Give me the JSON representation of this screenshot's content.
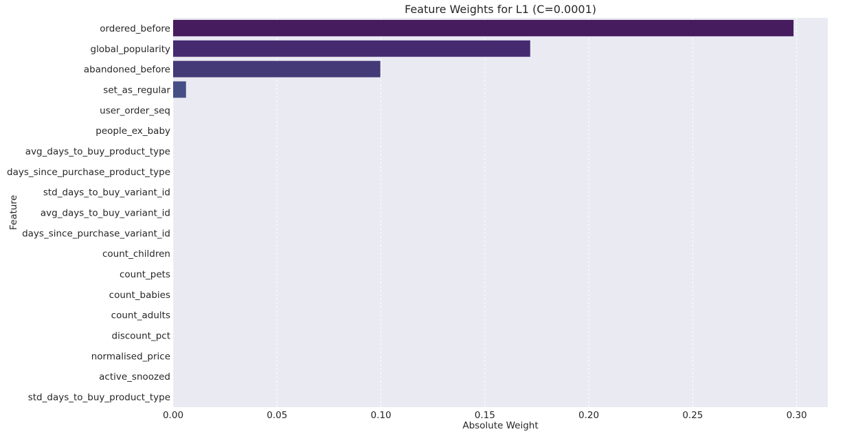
{
  "chart_data": {
    "type": "bar",
    "orientation": "horizontal",
    "title": "Feature Weights for L1 (C=0.0001)",
    "xlabel": "Absolute Weight",
    "ylabel": "Feature",
    "xlim": [
      0,
      0.315
    ],
    "xticks": [
      "0.00",
      "0.05",
      "0.10",
      "0.15",
      "0.20",
      "0.25",
      "0.30"
    ],
    "grid": true,
    "categories": [
      "ordered_before",
      "global_popularity",
      "abandoned_before",
      "set_as_regular",
      "user_order_seq",
      "people_ex_baby",
      "avg_days_to_buy_product_type",
      "days_since_purchase_product_type",
      "std_days_to_buy_variant_id",
      "avg_days_to_buy_variant_id",
      "days_since_purchase_variant_id",
      "count_children",
      "count_pets",
      "count_babies",
      "count_adults",
      "discount_pct",
      "normalised_price",
      "active_snoozed",
      "std_days_to_buy_product_type"
    ],
    "values": [
      0.2985,
      0.1718,
      0.0997,
      0.0062,
      0,
      0,
      0,
      0,
      0,
      0,
      0,
      0,
      0,
      0,
      0,
      0,
      0,
      0,
      0
    ],
    "colors": [
      "#461c5e",
      "#462a70",
      "#443a78",
      "#454f86"
    ],
    "style": {
      "background": "#eaeaf2",
      "grid_color": "#ffffff",
      "text_color": "#262626"
    }
  }
}
